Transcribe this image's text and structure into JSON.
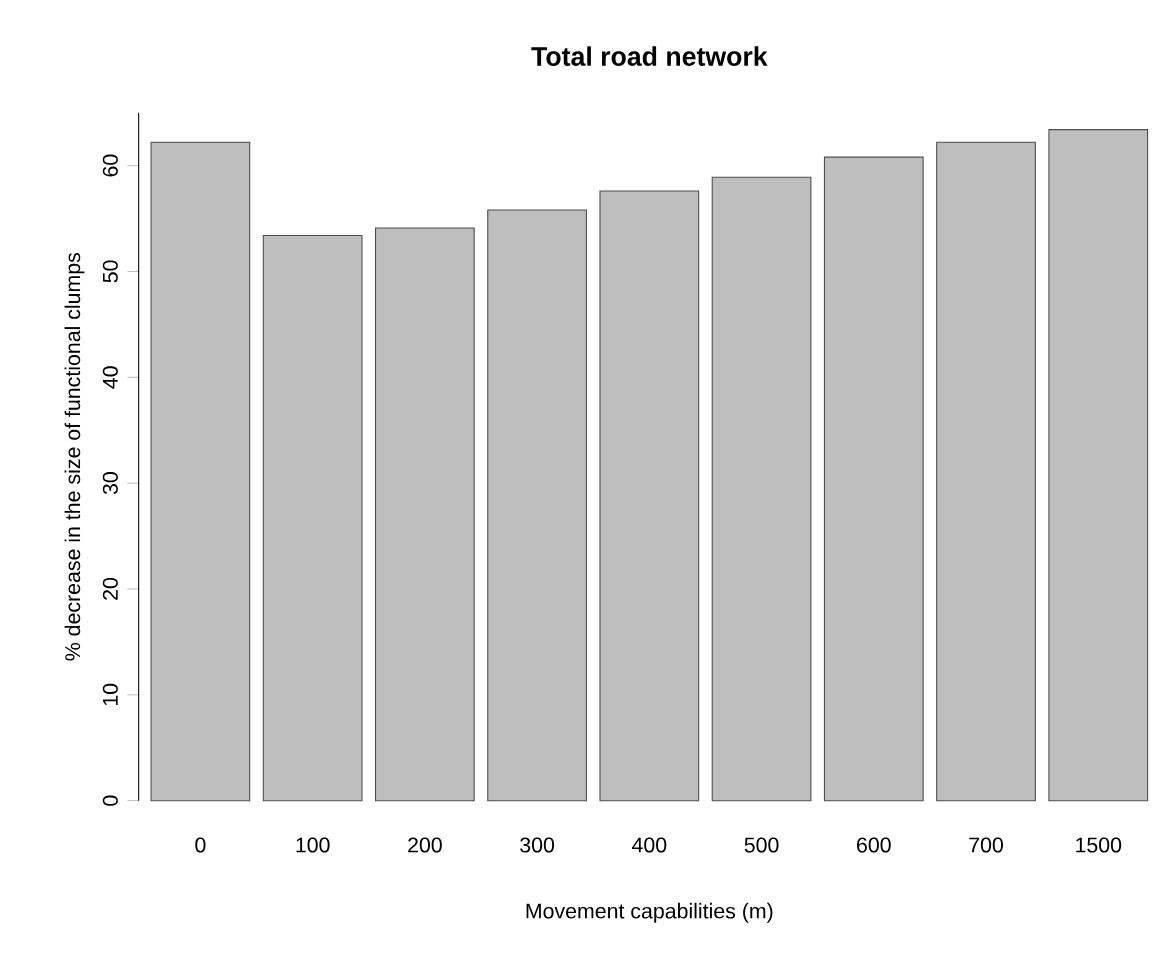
{
  "chart_data": {
    "type": "bar",
    "title": "Total road network",
    "xlabel": "Movement capabilities (m)",
    "ylabel": "% decrease in the size of functional clumps",
    "categories": [
      "0",
      "100",
      "200",
      "300",
      "400",
      "500",
      "600",
      "700",
      "1500"
    ],
    "values": [
      62.2,
      53.4,
      54.1,
      55.8,
      57.6,
      58.9,
      60.8,
      62.2,
      63.4
    ],
    "color": "#bebebe",
    "ylim": [
      0,
      65
    ],
    "yticks": [
      0,
      10,
      20,
      30,
      40,
      50,
      60
    ]
  }
}
